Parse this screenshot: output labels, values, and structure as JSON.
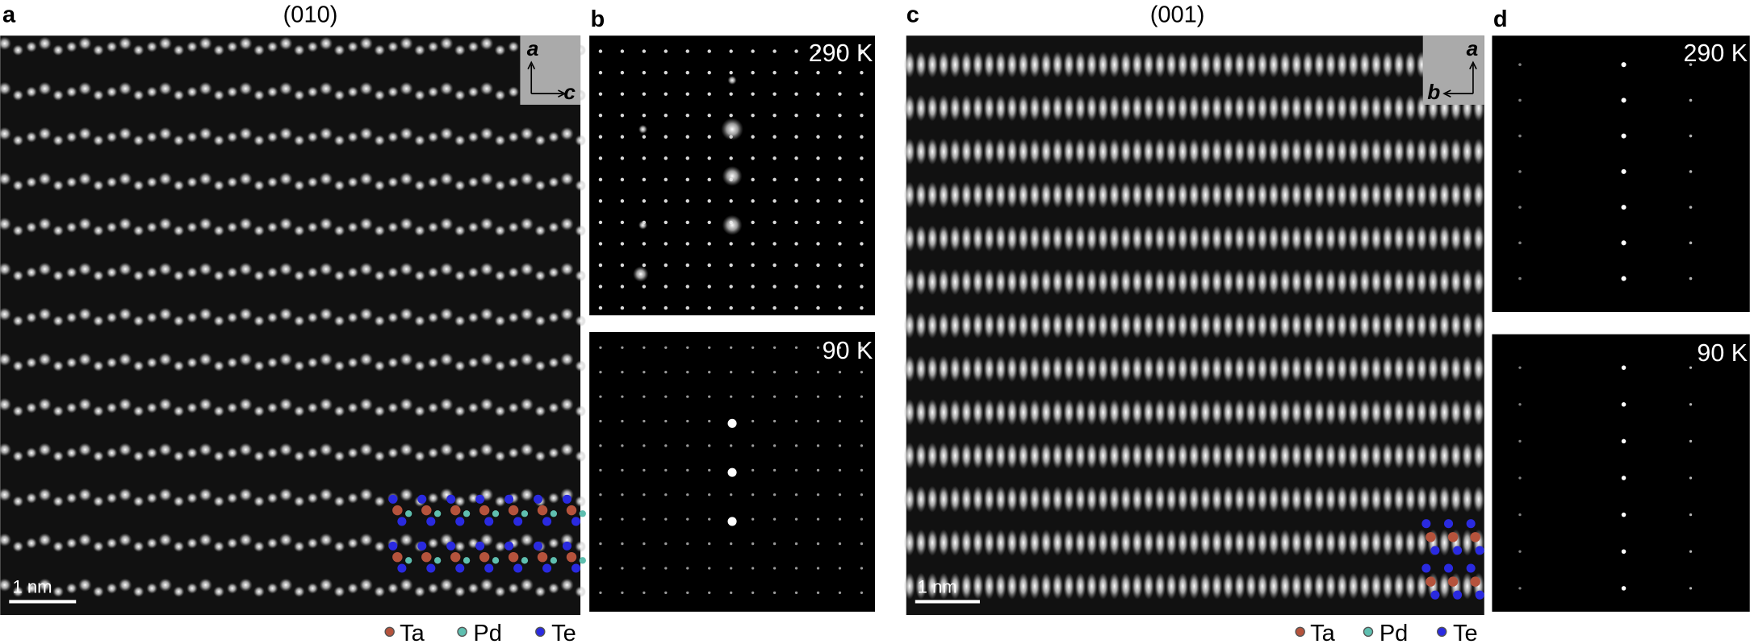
{
  "panels": [
    {
      "label": "a",
      "title": "(010)",
      "axes": [
        "a",
        "c"
      ],
      "scale_bar": "1 nm",
      "legend": [
        "Ta",
        "Pd",
        "Te"
      ]
    },
    {
      "label": "b",
      "images": [
        "290 K",
        "90 K"
      ]
    },
    {
      "label": "c",
      "title": "(001)",
      "axes": [
        "a",
        "b"
      ],
      "scale_bar": "1 nm",
      "legend": [
        "Ta",
        "Pd",
        "Te"
      ]
    },
    {
      "label": "d",
      "images": [
        "290 K",
        "90 K"
      ]
    }
  ]
}
